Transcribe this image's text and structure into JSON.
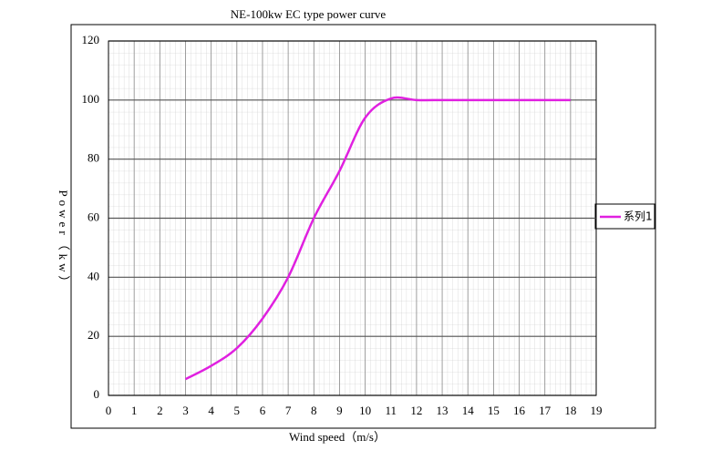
{
  "chart_data": {
    "type": "line",
    "title": "NE-100kw EC type power curve",
    "x_label": "Wind speed（m/s）",
    "y_label": "Power（kw）",
    "x": [
      3,
      4,
      5,
      6,
      7,
      8,
      9,
      10,
      11,
      12,
      13,
      14,
      15,
      16,
      17,
      18
    ],
    "series": [
      {
        "name": "系列1",
        "color": "#e020e0",
        "values": [
          5.5,
          10,
          16,
          26,
          40,
          60,
          76,
          94,
          100.5,
          100,
          100,
          100,
          100,
          100,
          100,
          100
        ]
      }
    ],
    "xlim": [
      0,
      19
    ],
    "xticks": [
      0,
      1,
      2,
      3,
      4,
      5,
      6,
      7,
      8,
      9,
      10,
      11,
      12,
      13,
      14,
      15,
      16,
      17,
      18,
      19
    ],
    "ylim": [
      0,
      120
    ],
    "yticks": [
      0,
      20,
      40,
      60,
      80,
      100,
      120
    ],
    "grid": true,
    "legend": "right"
  }
}
